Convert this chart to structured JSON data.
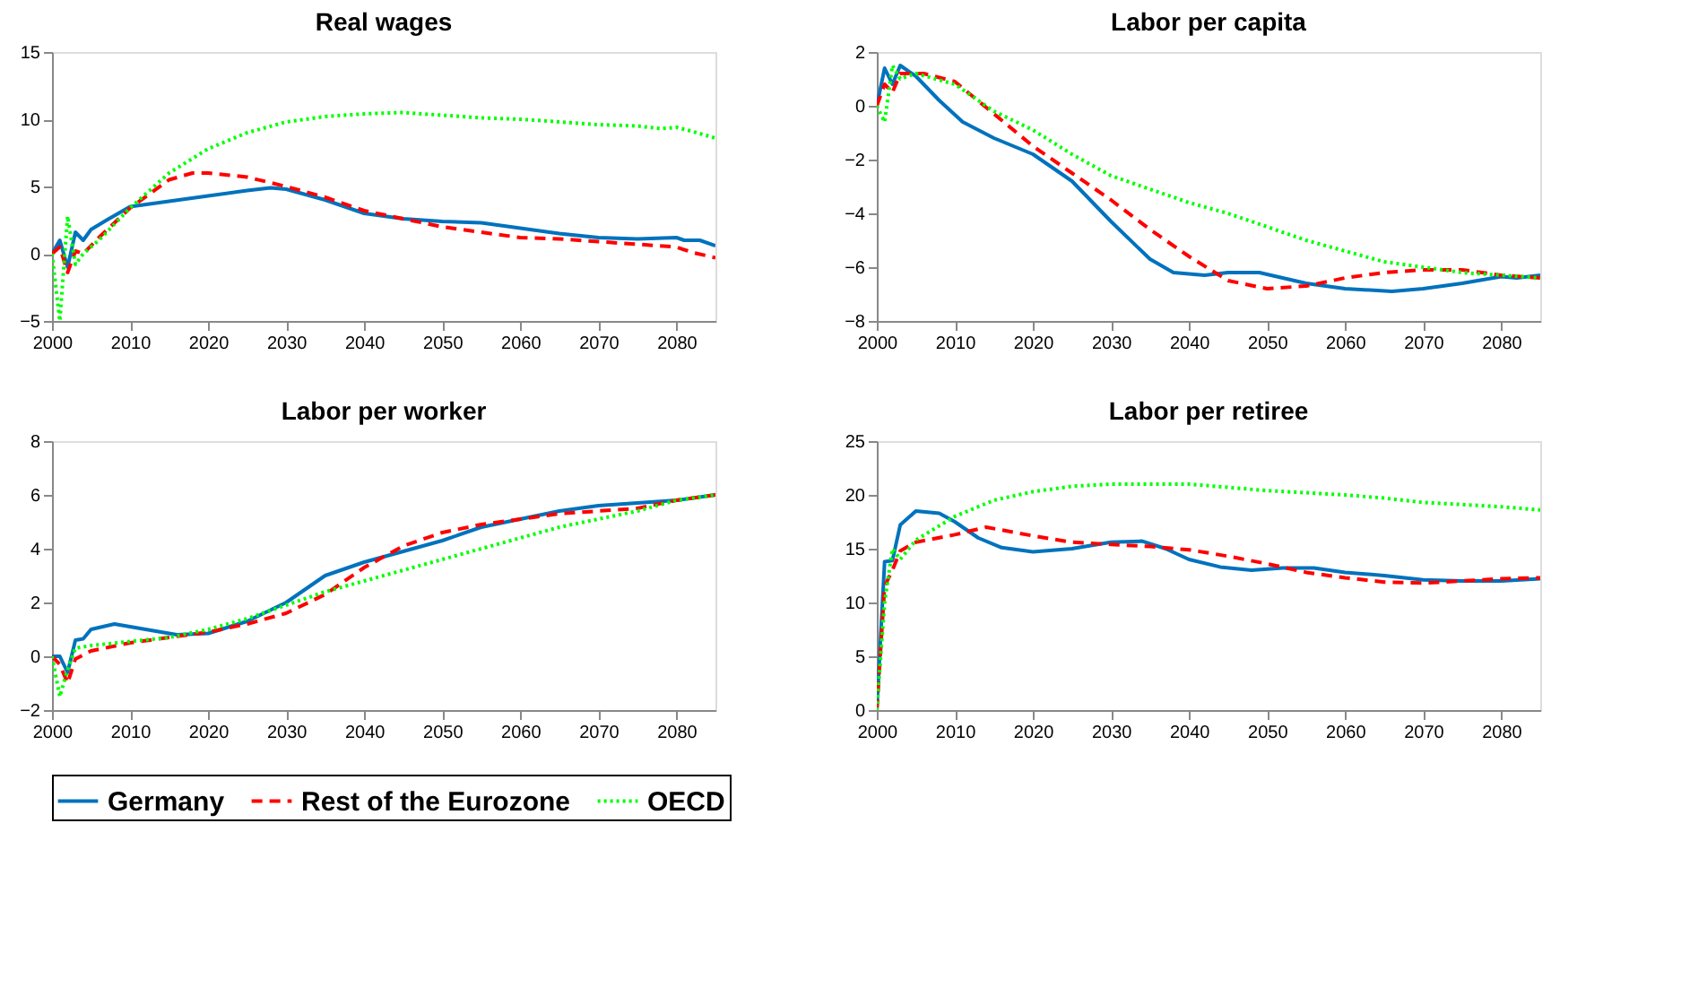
{
  "chart_data": [
    {
      "type": "line",
      "title": "Real wages",
      "xlim": [
        2000,
        2085
      ],
      "xticks": [
        2000,
        2010,
        2020,
        2030,
        2040,
        2050,
        2060,
        2070,
        2080
      ],
      "ylim": [
        -5,
        15
      ],
      "yticks": [
        -5,
        0,
        5,
        10,
        15
      ],
      "grid": false,
      "legend": "bottom",
      "series": [
        {
          "name": "Germany",
          "color": "#0072bd",
          "line_style": "solid",
          "x": [
            2000,
            2001,
            2002,
            2003,
            2004,
            2005,
            2007,
            2010,
            2015,
            2020,
            2025,
            2028,
            2030,
            2035,
            2040,
            2045,
            2050,
            2055,
            2060,
            2065,
            2070,
            2075,
            2080,
            2081,
            2083,
            2085
          ],
          "values": [
            0,
            1.0,
            -1.0,
            1.6,
            1.0,
            1.8,
            2.5,
            3.5,
            3.9,
            4.3,
            4.7,
            4.9,
            4.8,
            4.0,
            3.0,
            2.6,
            2.4,
            2.3,
            1.9,
            1.5,
            1.2,
            1.1,
            1.2,
            1.0,
            1.0,
            0.6
          ]
        },
        {
          "name": "Rest of the Eurozone",
          "color": "#ff0000",
          "line_style": "dashed",
          "x": [
            2000,
            2001,
            2002,
            2003,
            2004,
            2006,
            2010,
            2015,
            2018,
            2020,
            2025,
            2030,
            2035,
            2040,
            2045,
            2050,
            2055,
            2060,
            2065,
            2070,
            2075,
            2080,
            2082,
            2085
          ],
          "values": [
            0,
            0.5,
            -1.4,
            0.2,
            0,
            1.2,
            3.4,
            5.5,
            6.0,
            6.0,
            5.7,
            5.0,
            4.2,
            3.2,
            2.6,
            2.0,
            1.6,
            1.2,
            1.1,
            0.9,
            0.7,
            0.5,
            0.1,
            -0.3
          ]
        },
        {
          "name": "OECD",
          "color": "#00ff00",
          "line_style": "dotted",
          "x": [
            2000,
            2001,
            2002,
            2003,
            2004,
            2006,
            2010,
            2015,
            2020,
            2025,
            2030,
            2035,
            2040,
            2045,
            2050,
            2055,
            2060,
            2065,
            2070,
            2075,
            2078,
            2080,
            2082,
            2085
          ],
          "values": [
            0,
            -5,
            2.8,
            -0.8,
            0,
            1.0,
            3.4,
            6.0,
            7.8,
            9.0,
            9.8,
            10.2,
            10.4,
            10.5,
            10.3,
            10.1,
            10.0,
            9.8,
            9.6,
            9.5,
            9.3,
            9.4,
            9.1,
            8.6
          ]
        }
      ]
    },
    {
      "type": "line",
      "title": "Labor per capita",
      "xlim": [
        2000,
        2085
      ],
      "xticks": [
        2000,
        2010,
        2020,
        2030,
        2040,
        2050,
        2060,
        2070,
        2080
      ],
      "ylim": [
        -8,
        2
      ],
      "yticks": [
        -8,
        -6,
        -4,
        -2,
        0,
        2
      ],
      "grid": false,
      "legend": "bottom",
      "series": [
        {
          "name": "Germany",
          "color": "#0072bd",
          "line_style": "solid",
          "x": [
            2000,
            2001,
            2002,
            2003,
            2005,
            2008,
            2011,
            2015,
            2020,
            2025,
            2030,
            2035,
            2038,
            2042,
            2045,
            2049,
            2055,
            2060,
            2066,
            2070,
            2075,
            2080,
            2082,
            2085
          ],
          "values": [
            0,
            1.4,
            0.8,
            1.5,
            1.1,
            0.2,
            -0.6,
            -1.2,
            -1.8,
            -2.8,
            -4.3,
            -5.7,
            -6.2,
            -6.3,
            -6.2,
            -6.2,
            -6.6,
            -6.8,
            -6.9,
            -6.8,
            -6.6,
            -6.35,
            -6.4,
            -6.3
          ]
        },
        {
          "name": "Rest of the Eurozone",
          "color": "#ff0000",
          "line_style": "dashed",
          "x": [
            2000,
            2001,
            2002,
            2003,
            2006,
            2010,
            2015,
            2020,
            2025,
            2030,
            2035,
            2040,
            2045,
            2050,
            2055,
            2060,
            2065,
            2070,
            2075,
            2080,
            2085
          ],
          "values": [
            0,
            0.8,
            0.5,
            1.2,
            1.2,
            0.9,
            -0.3,
            -1.5,
            -2.5,
            -3.5,
            -4.6,
            -5.6,
            -6.5,
            -6.8,
            -6.7,
            -6.4,
            -6.2,
            -6.1,
            -6.1,
            -6.3,
            -6.4
          ]
        },
        {
          "name": "OECD",
          "color": "#00ff00",
          "line_style": "dotted",
          "x": [
            2000,
            2001,
            2002,
            2003,
            2005,
            2010,
            2015,
            2020,
            2025,
            2030,
            2035,
            2040,
            2045,
            2050,
            2055,
            2060,
            2065,
            2070,
            2075,
            2080,
            2085
          ],
          "values": [
            0,
            -0.6,
            1.5,
            1.0,
            1.2,
            0.8,
            -0.2,
            -0.9,
            -1.8,
            -2.6,
            -3.1,
            -3.6,
            -4.0,
            -4.5,
            -5.0,
            -5.4,
            -5.8,
            -6.0,
            -6.2,
            -6.3,
            -6.4
          ]
        }
      ]
    },
    {
      "type": "line",
      "title": "Labor per worker",
      "xlim": [
        2000,
        2085
      ],
      "xticks": [
        2000,
        2010,
        2020,
        2030,
        2040,
        2050,
        2060,
        2070,
        2080
      ],
      "ylim": [
        -2,
        8
      ],
      "yticks": [
        -2,
        0,
        2,
        4,
        6,
        8
      ],
      "grid": false,
      "legend": "bottom",
      "series": [
        {
          "name": "Germany",
          "color": "#0072bd",
          "line_style": "solid",
          "x": [
            2000,
            2001,
            2002,
            2003,
            2004,
            2005,
            2008,
            2012,
            2016,
            2020,
            2025,
            2030,
            2035,
            2040,
            2045,
            2050,
            2055,
            2060,
            2065,
            2070,
            2075,
            2080,
            2085
          ],
          "values": [
            0,
            0,
            -0.6,
            0.6,
            0.65,
            1.0,
            1.2,
            1.0,
            0.8,
            0.85,
            1.3,
            2.0,
            3.0,
            3.5,
            3.9,
            4.3,
            4.8,
            5.1,
            5.4,
            5.6,
            5.7,
            5.8,
            6.0
          ]
        },
        {
          "name": "Rest of the Eurozone",
          "color": "#ff0000",
          "line_style": "dashed",
          "x": [
            2000,
            2001,
            2002,
            2003,
            2005,
            2010,
            2015,
            2020,
            2025,
            2030,
            2035,
            2040,
            2045,
            2050,
            2055,
            2060,
            2065,
            2070,
            2075,
            2080,
            2085
          ],
          "values": [
            0,
            -0.3,
            -1.0,
            -0.1,
            0.2,
            0.5,
            0.7,
            0.9,
            1.2,
            1.6,
            2.3,
            3.3,
            4.1,
            4.6,
            4.9,
            5.1,
            5.3,
            5.4,
            5.5,
            5.8,
            6.0
          ]
        },
        {
          "name": "OECD",
          "color": "#00ff00",
          "line_style": "dotted",
          "x": [
            2000,
            2001,
            2002,
            2003,
            2005,
            2010,
            2015,
            2020,
            2025,
            2030,
            2035,
            2040,
            2045,
            2050,
            2055,
            2060,
            2065,
            2070,
            2075,
            2080,
            2085
          ],
          "values": [
            0,
            -1.5,
            -0.5,
            0.3,
            0.4,
            0.55,
            0.7,
            1.0,
            1.4,
            1.9,
            2.4,
            2.8,
            3.2,
            3.6,
            4.0,
            4.4,
            4.8,
            5.1,
            5.4,
            5.8,
            6.0
          ]
        }
      ]
    },
    {
      "type": "line",
      "title": "Labor per retiree",
      "xlim": [
        2000,
        2085
      ],
      "xticks": [
        2000,
        2010,
        2020,
        2030,
        2040,
        2050,
        2060,
        2070,
        2080
      ],
      "ylim": [
        0,
        25
      ],
      "yticks": [
        0,
        5,
        10,
        15,
        20,
        25
      ],
      "grid": false,
      "legend": "bottom",
      "series": [
        {
          "name": "Germany",
          "color": "#0072bd",
          "line_style": "solid",
          "x": [
            2000,
            2001,
            2002,
            2003,
            2005,
            2008,
            2010,
            2013,
            2016,
            2020,
            2025,
            2030,
            2034,
            2037,
            2040,
            2044,
            2048,
            2052,
            2056,
            2060,
            2065,
            2070,
            2075,
            2080,
            2085
          ],
          "values": [
            0,
            13.8,
            13.9,
            17.2,
            18.5,
            18.3,
            17.5,
            16.0,
            15.1,
            14.7,
            15.0,
            15.6,
            15.7,
            15.0,
            14.0,
            13.3,
            13.0,
            13.2,
            13.2,
            12.8,
            12.5,
            12.1,
            12.0,
            12.0,
            12.2
          ]
        },
        {
          "name": "Rest of the Eurozone",
          "color": "#ff0000",
          "line_style": "dashed",
          "x": [
            2000,
            2001,
            2002,
            2003,
            2005,
            2010,
            2014,
            2020,
            2025,
            2030,
            2035,
            2040,
            2045,
            2050,
            2055,
            2060,
            2065,
            2070,
            2075,
            2080,
            2085
          ],
          "values": [
            0,
            11.5,
            13.0,
            14.8,
            15.6,
            16.3,
            17.0,
            16.2,
            15.6,
            15.4,
            15.2,
            14.9,
            14.3,
            13.6,
            12.8,
            12.3,
            11.9,
            11.8,
            12.0,
            12.2,
            12.3
          ]
        },
        {
          "name": "OECD",
          "color": "#00ff00",
          "line_style": "dotted",
          "x": [
            2000,
            2001,
            2002,
            2003,
            2005,
            2010,
            2015,
            2020,
            2025,
            2030,
            2040,
            2045,
            2050,
            2055,
            2060,
            2065,
            2070,
            2075,
            2080,
            2085
          ],
          "values": [
            0,
            10,
            15.0,
            14.0,
            15.8,
            18.0,
            19.5,
            20.3,
            20.8,
            21.0,
            21.0,
            20.7,
            20.4,
            20.2,
            20.0,
            19.7,
            19.3,
            19.1,
            18.9,
            18.6
          ]
        }
      ]
    }
  ]
}
